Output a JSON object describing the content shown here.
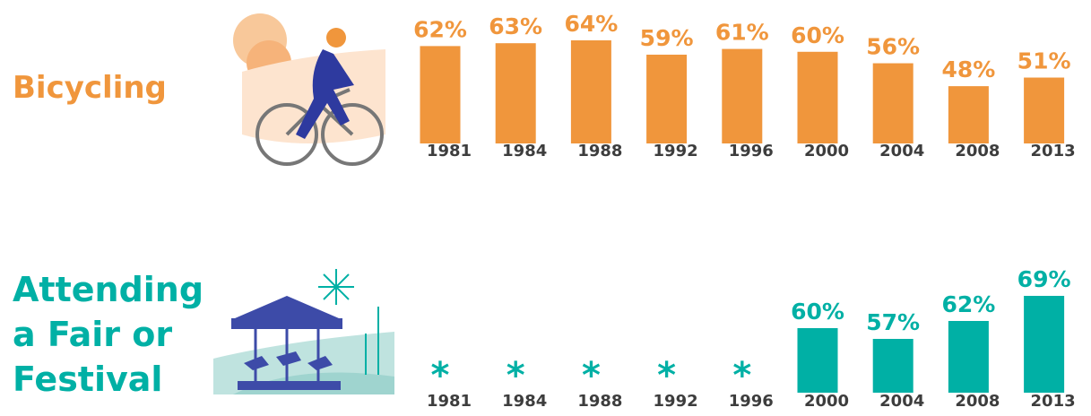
{
  "chart_data": [
    {
      "type": "bar",
      "title": "Bicycling",
      "color": "#f0963c",
      "categories": [
        "1981",
        "1984",
        "1988",
        "1992",
        "1996",
        "2000",
        "2004",
        "2008",
        "2013"
      ],
      "values": [
        62,
        63,
        64,
        59,
        61,
        60,
        56,
        48,
        51
      ],
      "value_labels": [
        "62%",
        "63%",
        "64%",
        "59%",
        "61%",
        "60%",
        "56%",
        "48%",
        "51%"
      ],
      "ylim": [
        28,
        64
      ]
    },
    {
      "type": "bar",
      "title": "Attending a Fair or Festival",
      "color": "#00b0a5",
      "categories": [
        "1981",
        "1984",
        "1988",
        "1992",
        "1996",
        "2000",
        "2004",
        "2008",
        "2013"
      ],
      "values": [
        null,
        null,
        null,
        null,
        null,
        60,
        57,
        62,
        69
      ],
      "value_labels": [
        "*",
        "*",
        "*",
        "*",
        "*",
        "60%",
        "57%",
        "62%",
        "69%"
      ],
      "ylim": [
        42,
        69
      ]
    }
  ]
}
